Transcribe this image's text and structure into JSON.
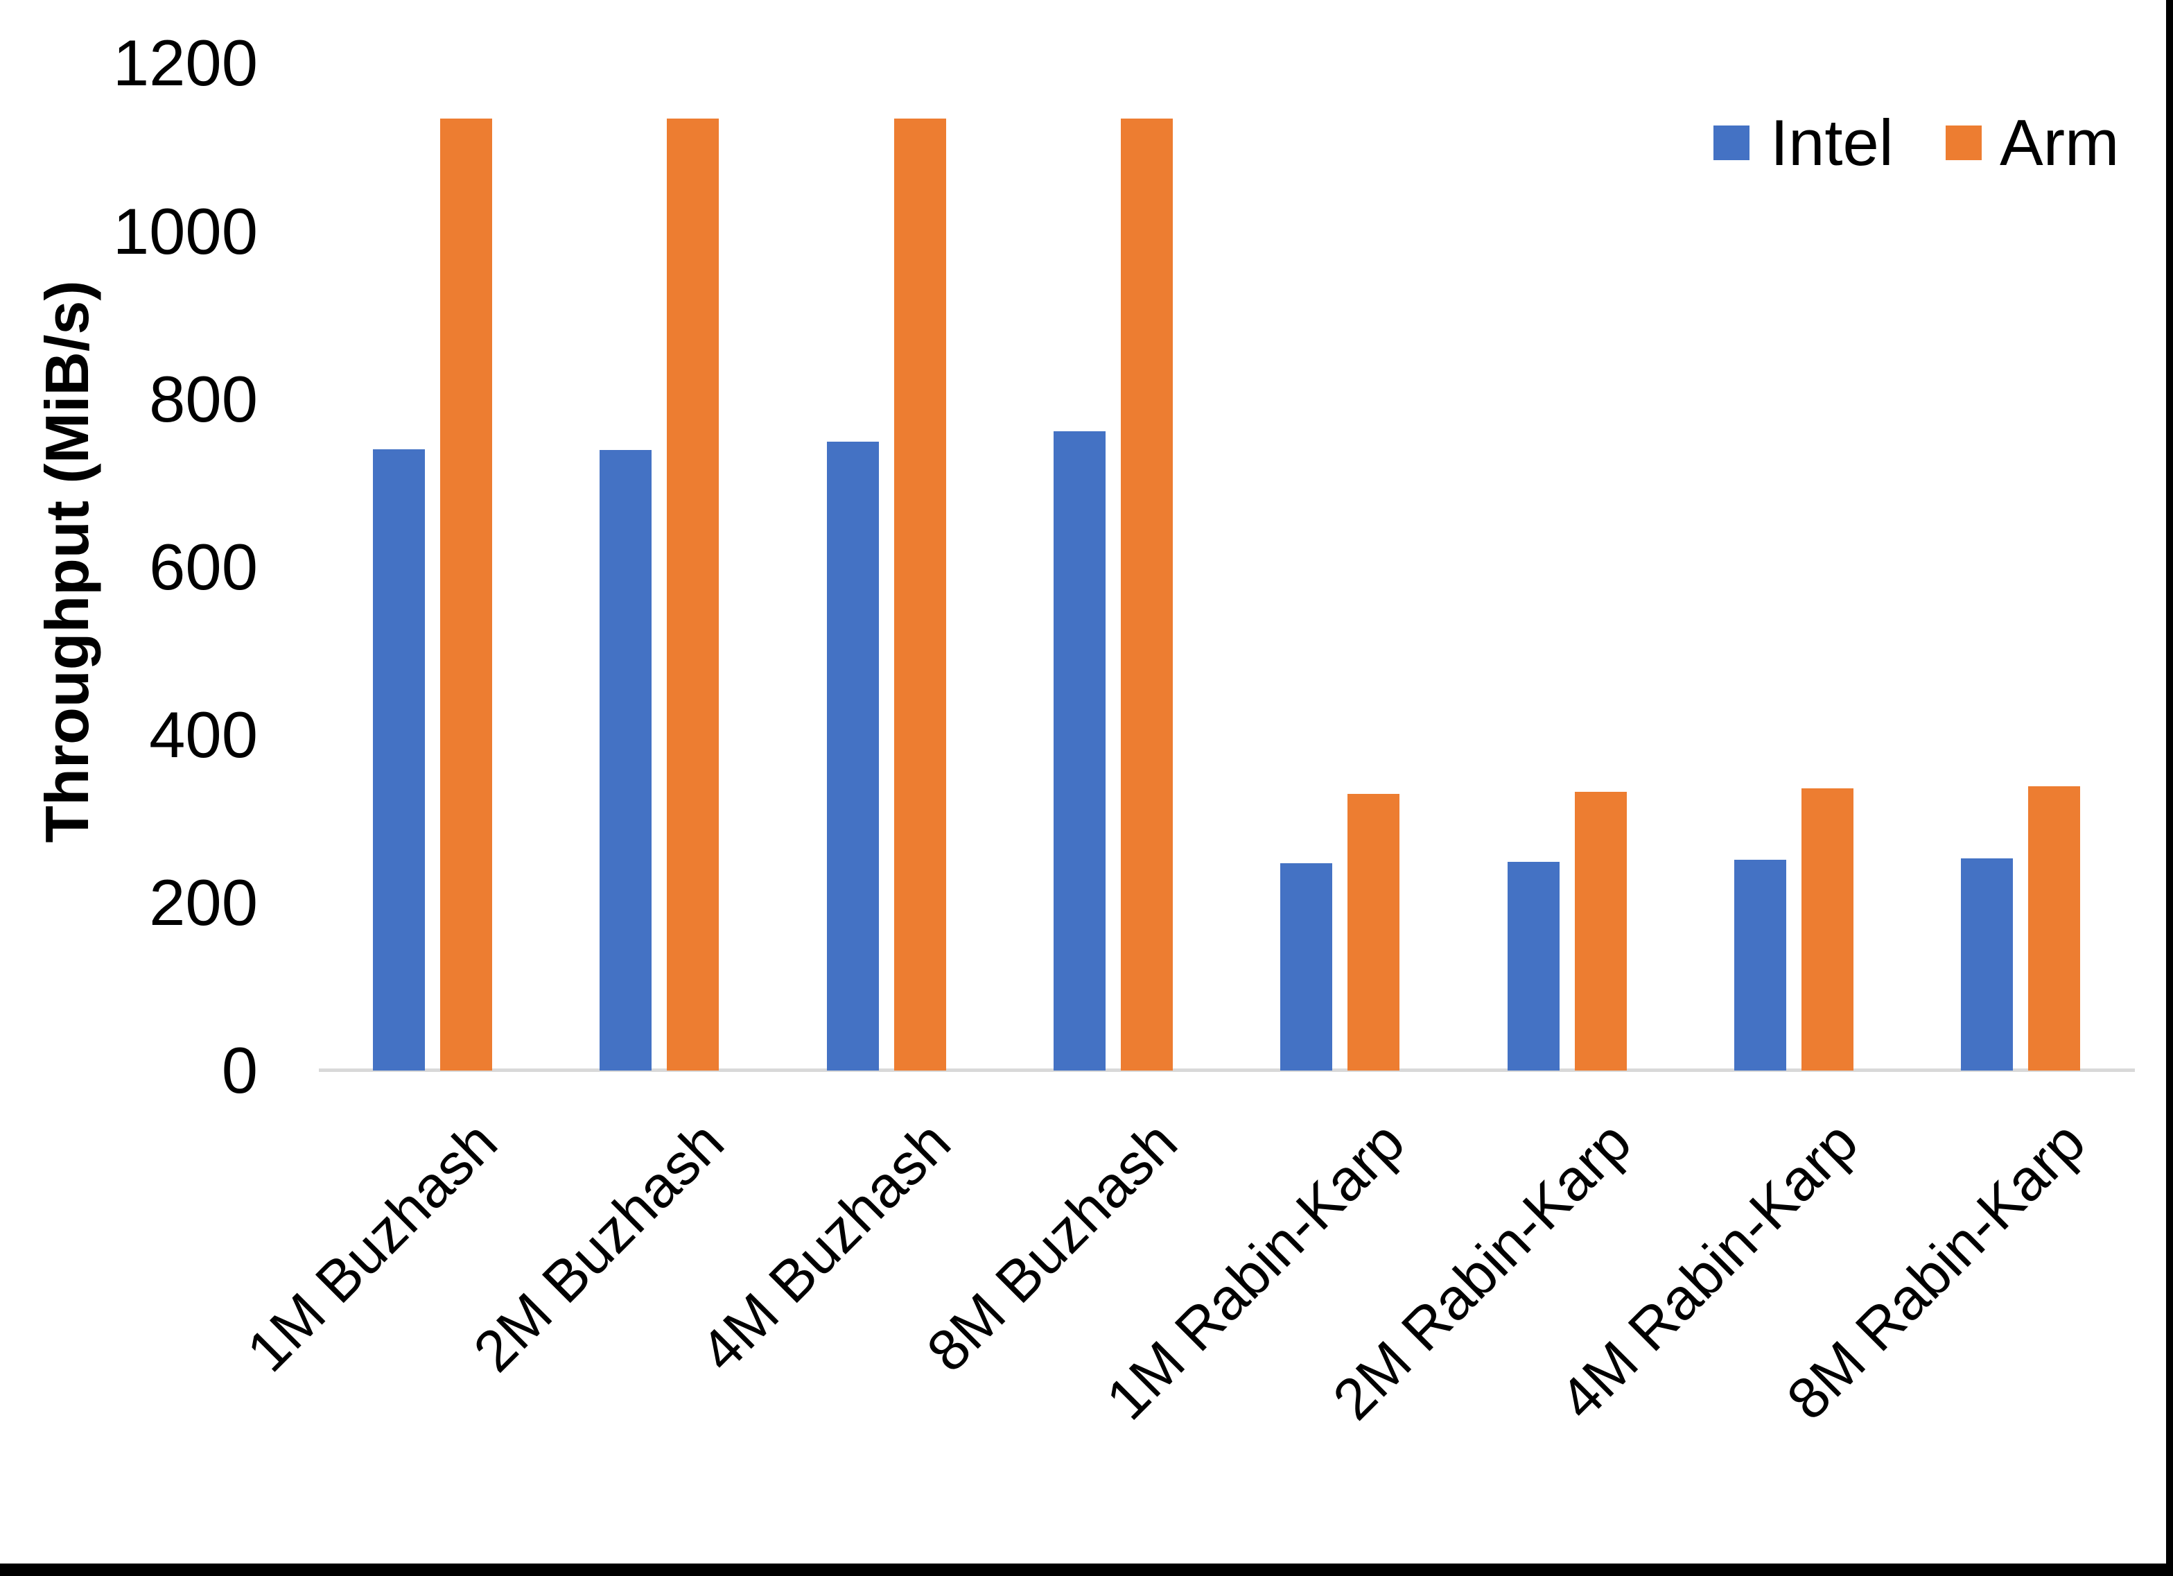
{
  "chart_data": {
    "type": "bar",
    "title": "",
    "xlabel": "",
    "ylabel": "Throughput (MiB/s)",
    "categories": [
      "1M Buzhash",
      "2M Buzhash",
      "4M Buzhash",
      "8M Buzhash",
      "1M Rabin-Karp",
      "2M Rabin-Karp",
      "4M Rabin-Karp",
      "8M Rabin-Karp"
    ],
    "series": [
      {
        "name": "Intel",
        "color": "#4472C4",
        "values": [
          740,
          739,
          749,
          762,
          247,
          249,
          251,
          253
        ]
      },
      {
        "name": "Arm",
        "color": "#ED7D31",
        "values": [
          1134,
          1134,
          1134,
          1134,
          330,
          332,
          336,
          339
        ]
      }
    ],
    "y_ticks": [
      0,
      200,
      400,
      600,
      800,
      1000,
      1200
    ],
    "ylim": [
      0,
      1200
    ],
    "grid": false,
    "legend": {
      "position": "top-right",
      "entries": [
        "Intel",
        "Arm"
      ]
    }
  },
  "colors": {
    "background": "#FFFFFF",
    "text": "#000000",
    "axis_line": "#D9D9D9",
    "bottom_border": "#000000",
    "right_border": "#000000"
  }
}
